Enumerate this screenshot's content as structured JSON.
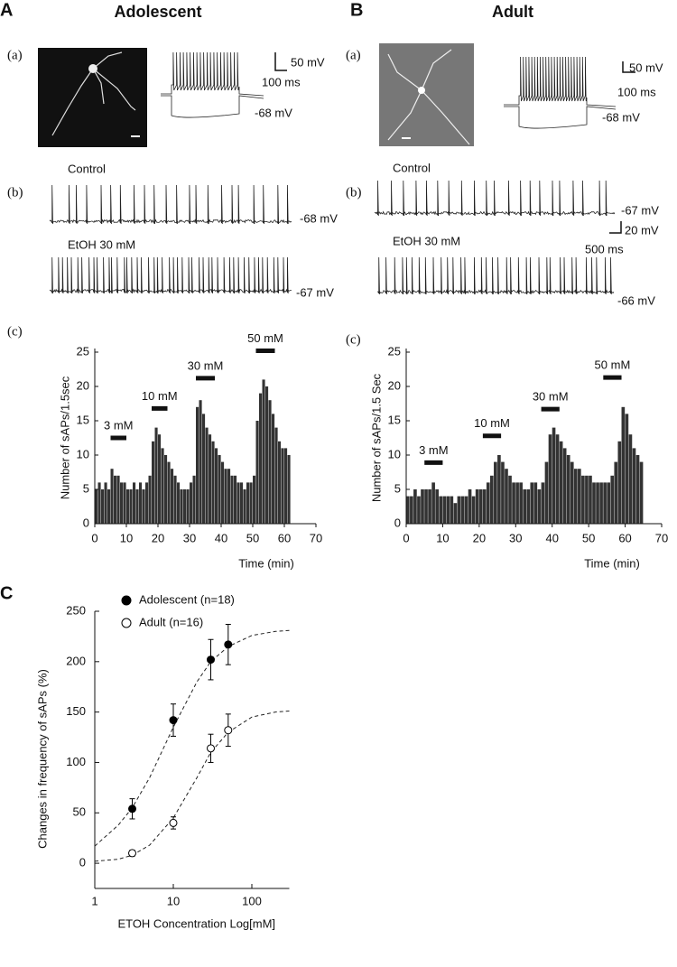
{
  "panels": {
    "A": {
      "letter": "A",
      "title": "Adolescent",
      "a": {
        "label": "(a)",
        "scale_v": "50 mV",
        "scale_t": "100 ms",
        "vm": "-68 mV"
      },
      "b": {
        "label": "(b)",
        "control": "Control",
        "control_vm": "-68 mV",
        "etoh": "EtOH 30 mM",
        "etoh_vm": "-67 mV"
      },
      "c": {
        "label": "(c)"
      }
    },
    "B": {
      "letter": "B",
      "title": "Adult",
      "a": {
        "label": "(a)",
        "scale_v": "50 mV",
        "scale_t": "100 ms",
        "vm": "-68 mV"
      },
      "b": {
        "label": "(b)",
        "control": "Control",
        "control_vm": "-67 mV",
        "etoh": "EtOH 30 mM",
        "etoh_vm": "-66 mV",
        "scale_v": "20 mV",
        "scale_t": "500 ms"
      },
      "c": {
        "label": "(c)"
      }
    },
    "C": {
      "letter": "C"
    }
  },
  "chart_data": [
    {
      "type": "histogram",
      "color": "#333333",
      "bins": [
        0,
        1,
        2,
        3,
        4,
        5,
        6,
        7,
        8,
        9,
        10,
        11,
        12,
        13,
        14,
        15,
        16,
        17,
        18,
        19,
        20,
        21,
        22,
        23,
        24,
        25,
        26,
        27,
        28,
        29,
        30,
        31,
        32,
        33,
        34,
        35,
        36,
        37,
        38,
        39,
        40,
        41,
        42,
        43,
        44,
        45,
        46,
        47,
        48,
        49,
        50,
        51,
        52,
        53,
        54,
        55,
        56,
        57,
        58,
        59,
        60,
        61,
        62
      ],
      "values": [
        5,
        6,
        5,
        6,
        5,
        8,
        7,
        7,
        6,
        6,
        5,
        5,
        6,
        5,
        6,
        5,
        6,
        7,
        12,
        14,
        13,
        11,
        10,
        9,
        8,
        7,
        6,
        5,
        5,
        5,
        6,
        7,
        17,
        18,
        16,
        14,
        13,
        12,
        11,
        10,
        9,
        8,
        8,
        7,
        7,
        6,
        6,
        5,
        6,
        6,
        7,
        15,
        19,
        21,
        20,
        18,
        16,
        14,
        12,
        11,
        11,
        10
      ],
      "xlim": [
        0,
        70
      ],
      "xticks": [
        0,
        10,
        20,
        30,
        40,
        50,
        60,
        70
      ],
      "ylim": [
        0,
        25
      ],
      "yticks": [
        0,
        5,
        10,
        15,
        20,
        25
      ],
      "xlabel": "Time (min)",
      "ylabel": "Number of sAPs/1.5sec",
      "annotations": [
        {
          "text": "3 mM",
          "x": [
            5,
            10
          ],
          "y": 12.5
        },
        {
          "text": "10 mM",
          "x": [
            18,
            23
          ],
          "y": 16.8
        },
        {
          "text": "30 mM",
          "x": [
            32,
            38
          ],
          "y": 21.2
        },
        {
          "text": "50 mM",
          "x": [
            51,
            57
          ],
          "y": 25.2
        }
      ]
    },
    {
      "type": "histogram",
      "color": "#333333",
      "bins": [
        0,
        1,
        2,
        3,
        4,
        5,
        6,
        7,
        8,
        9,
        10,
        11,
        12,
        13,
        14,
        15,
        16,
        17,
        18,
        19,
        20,
        21,
        22,
        23,
        24,
        25,
        26,
        27,
        28,
        29,
        30,
        31,
        32,
        33,
        34,
        35,
        36,
        37,
        38,
        39,
        40,
        41,
        42,
        43,
        44,
        45,
        46,
        47,
        48,
        49,
        50,
        51,
        52,
        53,
        54,
        55,
        56,
        57,
        58,
        59,
        60,
        61,
        62,
        63,
        64,
        65
      ],
      "values": [
        4,
        4,
        5,
        4,
        5,
        5,
        5,
        6,
        5,
        4,
        4,
        4,
        4,
        3,
        4,
        4,
        4,
        5,
        4,
        5,
        5,
        5,
        6,
        7,
        9,
        10,
        9,
        8,
        7,
        6,
        6,
        6,
        5,
        5,
        6,
        6,
        5,
        6,
        9,
        13,
        14,
        13,
        12,
        11,
        10,
        9,
        8,
        8,
        7,
        7,
        7,
        6,
        6,
        6,
        6,
        6,
        7,
        9,
        12,
        17,
        16,
        13,
        11,
        10,
        9
      ],
      "xlim": [
        0,
        70
      ],
      "xticks": [
        0,
        10,
        20,
        30,
        40,
        50,
        60,
        70
      ],
      "ylim": [
        0,
        25
      ],
      "yticks": [
        0,
        5,
        10,
        15,
        20,
        25
      ],
      "xlabel": "Time (min)",
      "ylabel": "Number of sAPs/1.5 Sec",
      "annotations": [
        {
          "text": "3 mM",
          "x": [
            5,
            10
          ],
          "y": 8.9
        },
        {
          "text": "10 mM",
          "x": [
            21,
            26
          ],
          "y": 12.8
        },
        {
          "text": "30 mM",
          "x": [
            37,
            42
          ],
          "y": 16.7
        },
        {
          "text": "50 mM",
          "x": [
            54,
            59
          ],
          "y": 21.3
        }
      ]
    },
    {
      "type": "scatter",
      "xlog": true,
      "xlim": [
        1,
        300
      ],
      "xticks": [
        1,
        10,
        100
      ],
      "ylim": [
        -25,
        250
      ],
      "yticks": [
        0,
        50,
        100,
        150,
        200,
        250
      ],
      "xlabel": "ETOH Concentration  Log[mM]",
      "ylabel": "Changes in frequency of sAPs (%)",
      "legend": "upper left",
      "series": [
        {
          "name": "Adolescent (n=18)",
          "color": "#000000",
          "marker": "filled",
          "x": [
            3,
            10,
            30,
            50
          ],
          "values": [
            54,
            142,
            202,
            217
          ],
          "errors": [
            10,
            16,
            20,
            20
          ]
        },
        {
          "name": "Adult  (n=16)",
          "color": "#000000",
          "marker": "open",
          "x": [
            3,
            10,
            30,
            50
          ],
          "values": [
            10,
            40,
            114,
            132
          ],
          "errors": [
            3,
            6,
            14,
            16
          ]
        }
      ],
      "fits": [
        {
          "x": [
            1,
            2,
            3,
            5,
            10,
            20,
            30,
            50,
            100,
            200,
            300
          ],
          "values": [
            17,
            38,
            55,
            85,
            135,
            180,
            200,
            215,
            226,
            230,
            231
          ]
        },
        {
          "x": [
            1,
            2,
            3,
            5,
            10,
            20,
            30,
            50,
            100,
            200,
            300
          ],
          "values": [
            2,
            4,
            8,
            18,
            45,
            85,
            110,
            130,
            145,
            150,
            151
          ]
        }
      ]
    }
  ]
}
